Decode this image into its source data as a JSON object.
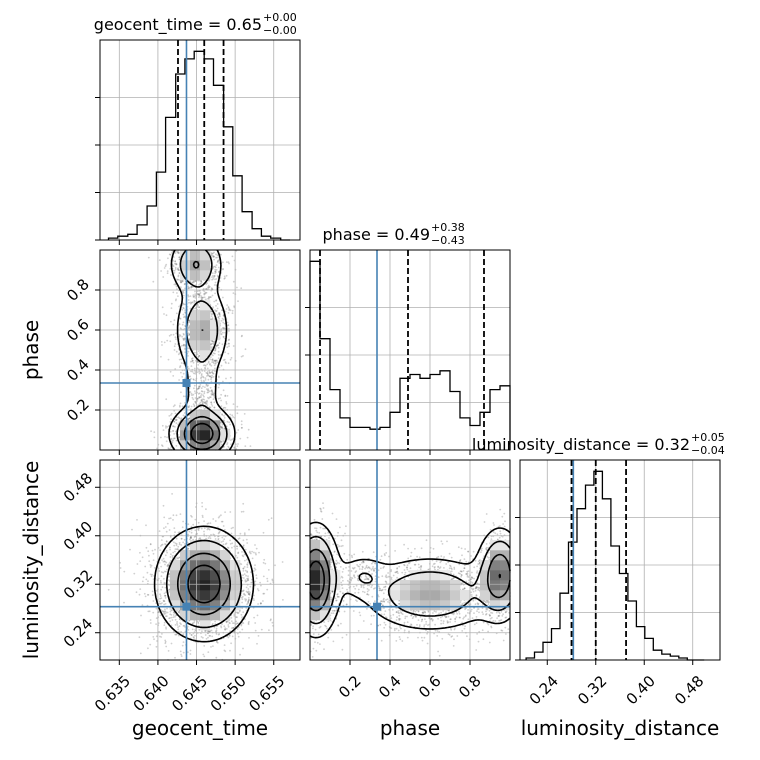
{
  "chart_data": {
    "type": "corner",
    "parameters": [
      "geocent_time",
      "phase",
      "luminosity_distance"
    ],
    "titles": [
      {
        "param": "geocent_time",
        "label": "geocent_time = 0.65",
        "sup": "+0.00",
        "sub": "−0.00"
      },
      {
        "param": "phase",
        "label": "phase = 0.49",
        "sup": "+0.38",
        "sub": "−0.43"
      },
      {
        "param": "luminosity_distance",
        "label": "luminosity_distance = 0.32",
        "sup": "+0.05",
        "sub": "−0.04"
      }
    ],
    "axis_labels": {
      "x": [
        "geocent_time",
        "phase",
        "luminosity_distance"
      ],
      "y": [
        "phase",
        "luminosity_distance"
      ]
    },
    "ranges": {
      "geocent_time": [
        0.6325,
        0.6584
      ],
      "phase": [
        0.0,
        1.0
      ],
      "luminosity_distance": [
        0.195,
        0.525
      ]
    },
    "ticks": {
      "geocent_time": [
        {
          "v": 0.635,
          "label": "0.635"
        },
        {
          "v": 0.64,
          "label": "0.640"
        },
        {
          "v": 0.645,
          "label": "0.645"
        },
        {
          "v": 0.65,
          "label": "0.650"
        },
        {
          "v": 0.655,
          "label": "0.655"
        }
      ],
      "phase": [
        {
          "v": 0.2,
          "label": "0.2"
        },
        {
          "v": 0.4,
          "label": "0.4"
        },
        {
          "v": 0.6,
          "label": "0.6"
        },
        {
          "v": 0.8,
          "label": "0.8"
        }
      ],
      "luminosity_distance": [
        {
          "v": 0.24,
          "label": "0.24"
        },
        {
          "v": 0.32,
          "label": "0.32"
        },
        {
          "v": 0.4,
          "label": "0.40"
        },
        {
          "v": 0.48,
          "label": "0.48"
        }
      ]
    },
    "truths": {
      "geocent_time": 0.6437,
      "phase": 0.335,
      "luminosity_distance": 0.283
    },
    "quantiles": {
      "geocent_time": [
        0.6426,
        0.646,
        0.6485
      ],
      "phase": [
        0.05,
        0.49,
        0.87
      ],
      "luminosity_distance": [
        0.28,
        0.32,
        0.37
      ]
    },
    "histograms": {
      "geocent_time": {
        "edges": [
          0.6336,
          0.6348,
          0.6361,
          0.6373,
          0.6386,
          0.6398,
          0.641,
          0.6423,
          0.6435,
          0.6447,
          0.646,
          0.6472,
          0.6485,
          0.6497,
          0.6509,
          0.6522,
          0.6534,
          0.6546,
          0.6559,
          0.6571
        ],
        "counts": [
          1,
          2,
          3,
          8,
          18,
          36,
          65,
          88,
          96,
          100,
          96,
          82,
          60,
          34,
          15,
          6,
          2,
          1,
          0
        ]
      },
      "phase": {
        "edges": [
          0.0,
          0.05,
          0.1,
          0.15,
          0.2,
          0.25,
          0.3,
          0.35,
          0.4,
          0.45,
          0.5,
          0.55,
          0.6,
          0.65,
          0.7,
          0.75,
          0.8,
          0.85,
          0.9,
          0.95,
          1.0
        ],
        "counts": [
          100,
          59,
          32,
          17,
          12,
          12,
          11,
          12,
          20,
          38,
          40,
          38,
          40,
          42,
          31,
          17,
          13,
          20,
          32,
          34
        ]
      },
      "luminosity_distance": {
        "edges": [
          0.205,
          0.219,
          0.233,
          0.247,
          0.261,
          0.275,
          0.289,
          0.303,
          0.317,
          0.331,
          0.345,
          0.359,
          0.373,
          0.387,
          0.401,
          0.415,
          0.429,
          0.443,
          0.457,
          0.471,
          0.485,
          0.499
        ],
        "counts": [
          1,
          4,
          9,
          16,
          34,
          60,
          77,
          89,
          96,
          82,
          58,
          44,
          30,
          17,
          11,
          5,
          3,
          2,
          1,
          0,
          0
        ]
      }
    },
    "contour_levels": [
      0.5,
      1.0,
      1.5,
      2.0
    ]
  }
}
